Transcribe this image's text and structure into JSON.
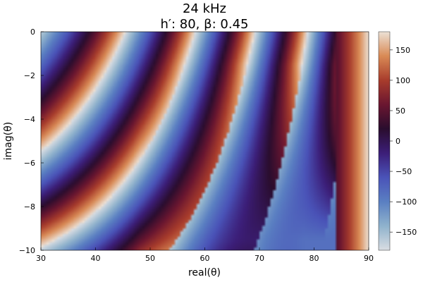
{
  "chart_data": {
    "type": "heatmap",
    "title_line1": "24 kHz",
    "title_line2": "h′: 80, β: 0.45",
    "xlabel": "real(θ)",
    "ylabel": "imag(θ)",
    "xlim": [
      30,
      90
    ],
    "ylim": [
      -10,
      0
    ],
    "xticks": [
      30,
      40,
      50,
      60,
      70,
      80,
      90
    ],
    "yticks": [
      0,
      -2,
      -4,
      -6,
      -8,
      -10
    ],
    "colorbar": {
      "range": [
        -180,
        180
      ],
      "ticks": [
        150,
        100,
        50,
        0,
        -50,
        -100,
        -150
      ]
    },
    "grid": false,
    "colormap": [
      "#d9dde2",
      "#8fb2cc",
      "#5a7fc2",
      "#4a53b8",
      "#3c1e78",
      "#2a0d2e",
      "#6a1630",
      "#a83c2c",
      "#d98a55",
      "#ece1d6"
    ]
  }
}
